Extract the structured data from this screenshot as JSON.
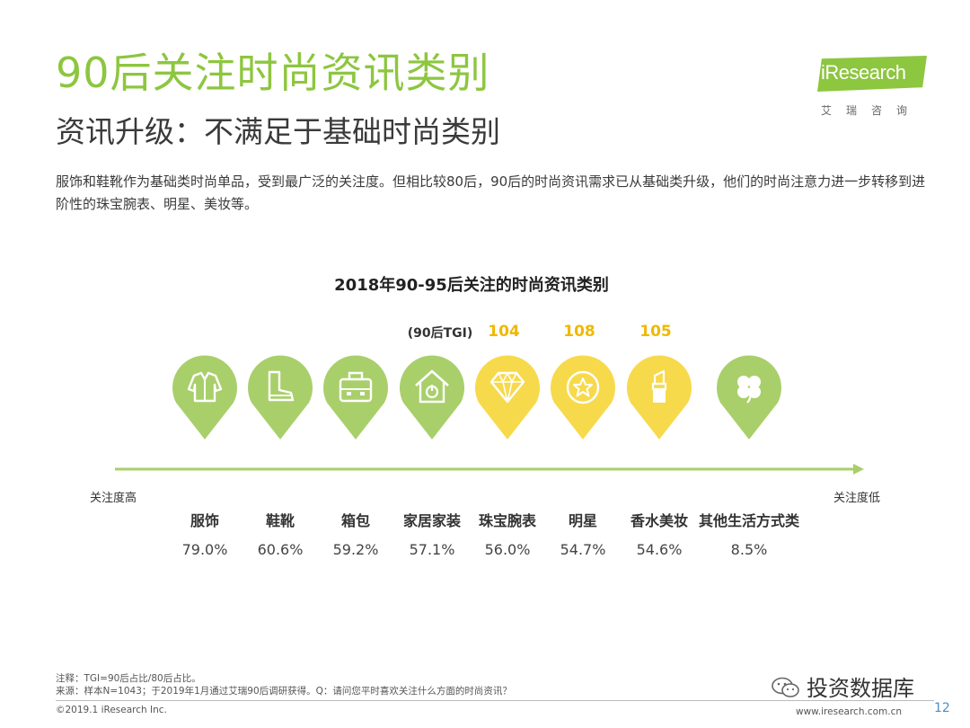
{
  "header": {
    "title": "90后关注时尚资讯类别",
    "subtitle": "资讯升级：不满足于基础时尚类别",
    "description": "服饰和鞋靴作为基础类时尚单品，受到最广泛的关注度。但相比较80后，90后的时尚资讯需求已从基础类升级，他们的时尚注意力进一步转移到进阶性的珠宝腕表、明星、美妆等。"
  },
  "logo": {
    "text": "iResearch",
    "cn": "艾瑞咨询"
  },
  "chart_data": {
    "type": "bar",
    "title": "2018年90-95后关注的时尚资讯类别",
    "categories": [
      "服饰",
      "鞋靴",
      "箱包",
      "家居家装",
      "珠宝腕表",
      "明星",
      "香水美妆",
      "其他生活方式类"
    ],
    "values": [
      "79.0%",
      "60.6%",
      "59.2%",
      "57.1%",
      "56.0%",
      "54.7%",
      "54.6%",
      "8.5%"
    ],
    "icons": [
      "jacket-icon",
      "boot-icon",
      "bag-icon",
      "house-icon",
      "diamond-icon",
      "star-icon",
      "lipstick-icon",
      "clover-icon"
    ],
    "tgi_label": "(90后TGI)",
    "tgi": [
      "",
      "",
      "",
      "",
      "104",
      "108",
      "105",
      ""
    ],
    "highlight": [
      false,
      false,
      false,
      false,
      true,
      true,
      true,
      false
    ],
    "axis_left": "关注度高",
    "axis_right": "关注度低",
    "colors": {
      "pin": "#a9cf6b",
      "pin_highlight": "#f7d94c",
      "tgi": "#f0b800",
      "line": "#a9cf6b"
    }
  },
  "footer": {
    "note": "注释：TGI=90后占比/80后占比。",
    "source": "来源：样本N=1043；于2019年1月通过艾瑞90后调研获得。Q：请问您平时喜欢关注什么方面的时尚资讯？",
    "copyright": "©2019.1 iResearch Inc.",
    "site": "www.iresearch.com.cn",
    "page": "12",
    "watermark": "投资数据库"
  }
}
